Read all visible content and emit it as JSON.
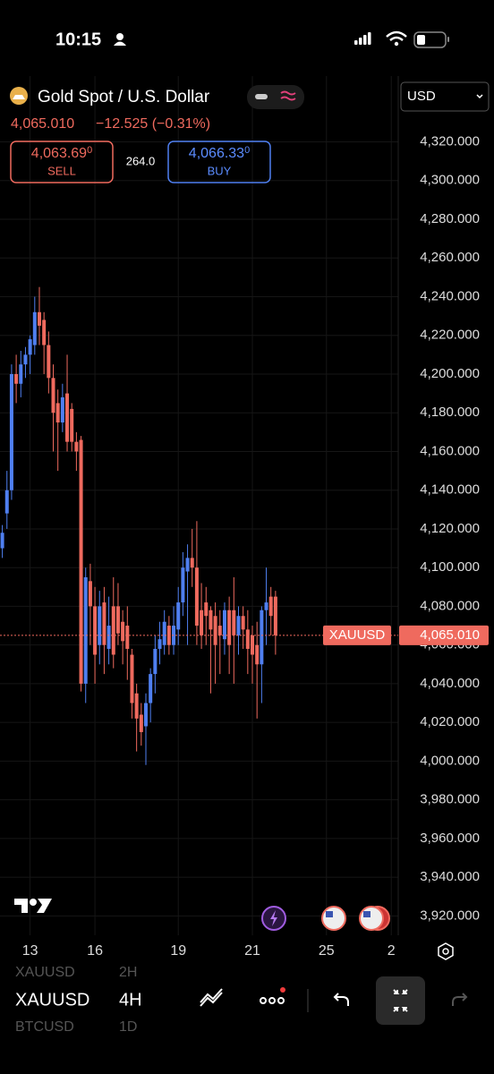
{
  "status_bar": {
    "time": "10:15"
  },
  "header": {
    "symbol_name": "Gold Spot / U.S. Dollar",
    "change": "−12.525 (−0.31%)",
    "currency": "USD"
  },
  "trade": {
    "sell_price": "4,063.69",
    "sell_price_sup": "0",
    "sell_label": "SELL",
    "spread": "264.0",
    "buy_price": "4,066.33",
    "buy_price_sup": "0",
    "buy_label": "BUY"
  },
  "chart_data": {
    "type": "candlestick",
    "up_color": "#4f7ff0",
    "down_color": "#ef6a5e",
    "grid": true,
    "open": [
      4110,
      4128,
      4140,
      4200,
      4195,
      4205,
      4210,
      4215,
      4232,
      4228,
      4215,
      4198,
      4185,
      4175,
      4190,
      4182,
      4165,
      4166,
      4040,
      4093,
      4080,
      4060,
      4082,
      4058,
      4080,
      4080,
      4072,
      4070,
      4055,
      4035,
      4024,
      4018,
      4030,
      4045,
      4058,
      4060,
      4070,
      4060,
      4068,
      4082,
      4098,
      4105,
      4100,
      4078,
      4082,
      4078,
      4075,
      4070,
      4063,
      4078,
      4078,
      4065,
      4075,
      4068,
      4065,
      4060,
      4050,
      4078,
      4085,
      4085
    ],
    "high": [
      4122,
      4150,
      4205,
      4210,
      4212,
      4214,
      4220,
      4240,
      4245,
      4232,
      4222,
      4205,
      4192,
      4195,
      4210,
      4185,
      4170,
      4168,
      4100,
      4102,
      4090,
      4088,
      4090,
      4085,
      4095,
      4092,
      4078,
      4080,
      4058,
      4040,
      4030,
      4035,
      4048,
      4065,
      4072,
      4078,
      4075,
      4080,
      4090,
      4108,
      4112,
      4120,
      4124,
      4092,
      4090,
      4080,
      4082,
      4078,
      4082,
      4085,
      4095,
      4080,
      4080,
      4078,
      4070,
      4072,
      4080,
      4100,
      4090,
      4088
    ],
    "low": [
      4105,
      4120,
      4135,
      4185,
      4188,
      4198,
      4200,
      4210,
      4215,
      4200,
      4190,
      4160,
      4150,
      4170,
      4160,
      4160,
      4150,
      4036,
      4030,
      4060,
      4040,
      4050,
      4045,
      4050,
      4048,
      4060,
      4050,
      4042,
      4022,
      4005,
      4008,
      3998,
      4020,
      4035,
      4050,
      4055,
      4055,
      4055,
      4060,
      4075,
      4060,
      4090,
      4060,
      4058,
      4060,
      4035,
      4040,
      4045,
      4055,
      4045,
      4040,
      4055,
      4058,
      4045,
      4040,
      4022,
      4030,
      4060,
      4065,
      4055
    ],
    "close": [
      4118,
      4140,
      4200,
      4195,
      4205,
      4210,
      4218,
      4232,
      4225,
      4215,
      4198,
      4180,
      4175,
      4188,
      4165,
      4165,
      4160,
      4040,
      4095,
      4080,
      4055,
      4080,
      4060,
      4070,
      4055,
      4066,
      4062,
      4058,
      4030,
      4022,
      4015,
      4030,
      4045,
      4058,
      4063,
      4072,
      4060,
      4070,
      4082,
      4100,
      4105,
      4100,
      4070,
      4065,
      4075,
      4068,
      4060,
      4065,
      4078,
      4060,
      4065,
      4075,
      4068,
      4058,
      4055,
      4050,
      4078,
      4082,
      4075,
      4065
    ],
    "ylim": [
      3910,
      4354
    ],
    "yticks": [
      {
        "value": 3920,
        "label": "3,920.000"
      },
      {
        "value": 3940,
        "label": "3,940.000"
      },
      {
        "value": 3960,
        "label": "3,960.000"
      },
      {
        "value": 3980,
        "label": "3,980.000"
      },
      {
        "value": 4000,
        "label": "4,000.000"
      },
      {
        "value": 4020,
        "label": "4,020.000"
      },
      {
        "value": 4040,
        "label": "4,040.000"
      },
      {
        "value": 4060,
        "label": "4,060.000"
      },
      {
        "value": 4080,
        "label": "4,080.000"
      },
      {
        "value": 4100,
        "label": "4,100.000"
      },
      {
        "value": 4120,
        "label": "4,120.000"
      },
      {
        "value": 4140,
        "label": "4,140.000"
      },
      {
        "value": 4160,
        "label": "4,160.000"
      },
      {
        "value": 4180,
        "label": "4,180.000"
      },
      {
        "value": 4200,
        "label": "4,200.000"
      },
      {
        "value": 4220,
        "label": "4,220.000"
      },
      {
        "value": 4240,
        "label": "4,240.000"
      },
      {
        "value": 4260,
        "label": "4,260.000"
      },
      {
        "value": 4280,
        "label": "4,280.000"
      },
      {
        "value": 4300,
        "label": "4,300.000"
      },
      {
        "value": 4320,
        "label": "4,320.000"
      }
    ],
    "xlim": [
      -0.5,
      85.5
    ],
    "xticks": [
      {
        "value": 6,
        "label": "13"
      },
      {
        "value": 20,
        "label": "16"
      },
      {
        "value": 38,
        "label": "19"
      },
      {
        "value": 54,
        "label": "21"
      },
      {
        "value": 70,
        "label": "25"
      },
      {
        "value": 84,
        "label": "2"
      }
    ],
    "last_price": {
      "value": 4065.01,
      "label": "4,065.010",
      "symbol": "XAUUSD"
    }
  },
  "toolbar": {
    "prev_symbol": "XAUUSD",
    "prev_interval": "2H",
    "symbol": "XAUUSD",
    "interval": "4H",
    "next_symbol": "BTCUSD",
    "next_interval": "1D"
  }
}
